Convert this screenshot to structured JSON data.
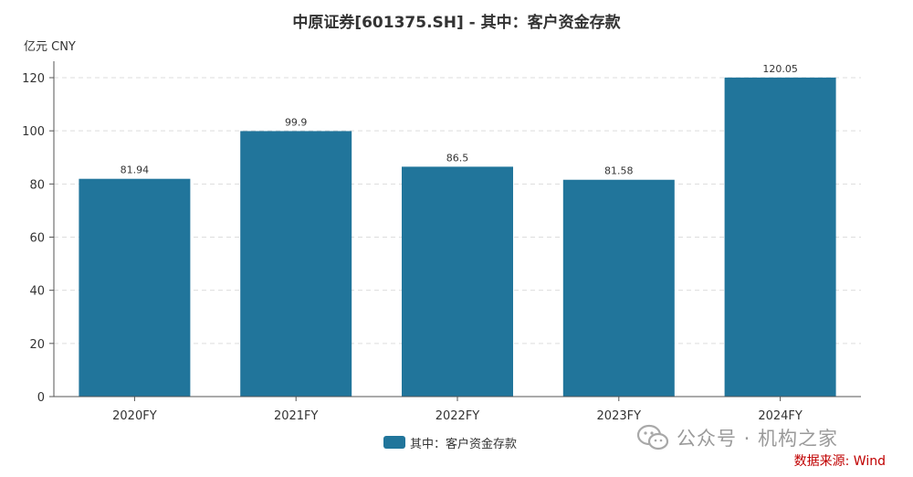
{
  "chart_data": {
    "type": "bar",
    "title": "中原证券[601375.SH] - 其中：客户资金存款",
    "ylabel": "亿元  CNY",
    "categories": [
      "2020FY",
      "2021FY",
      "2022FY",
      "2023FY",
      "2024FY"
    ],
    "series": [
      {
        "name": "其中：客户资金存款",
        "values": [
          81.94,
          99.9,
          86.5,
          81.58,
          120.05
        ],
        "color": "#21759b"
      }
    ],
    "data_labels": [
      "81.94",
      "99.9",
      "86.5",
      "81.58",
      "120.05"
    ],
    "yticks": [
      0,
      20,
      40,
      60,
      80,
      100,
      120
    ],
    "ylim": [
      0,
      120
    ],
    "grid": true,
    "legend_position": "bottom-center"
  },
  "watermark": {
    "text": "公众号 · 机构之家",
    "icon": "wechat-icon"
  },
  "source": "数据来源: Wind"
}
